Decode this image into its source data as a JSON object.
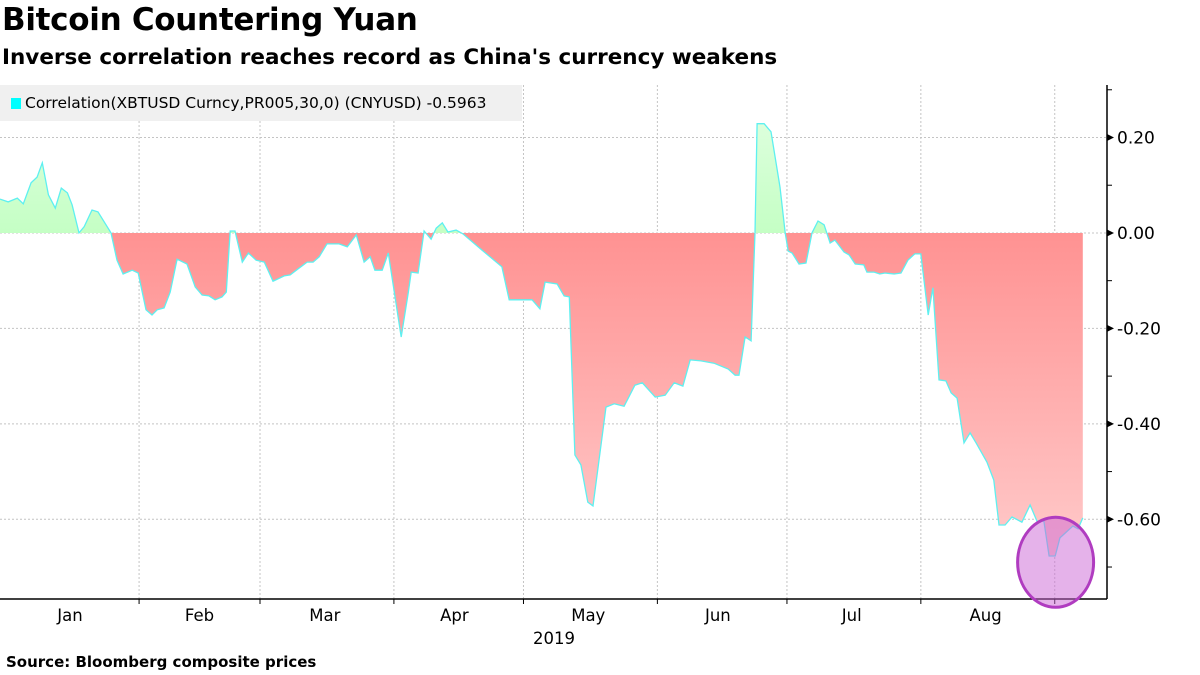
{
  "header": {
    "title": "Bitcoin Countering Yuan",
    "subtitle": "Inverse correlation reaches record as China's currency weakens"
  },
  "footer": {
    "source": "Source: Bloomberg composite prices"
  },
  "chart_data": {
    "type": "area",
    "title": "Bitcoin Countering Yuan",
    "subtitle": "Inverse correlation reaches record as China's currency weakens",
    "xlabel": "2019",
    "ylabel": "",
    "x_unit": "day of year 2019 (0 = Jan 1)",
    "xlim": [
      -1.2,
      255.1
    ],
    "ylim": [
      -0.767,
      0.31
    ],
    "grid": true,
    "legend_position": "top-left",
    "legend": {
      "label": "Correlation(XBTUSD Curncy,PR005,30,0) (CNYUSD) -0.5963",
      "color": "#00ffff"
    },
    "colors": {
      "line": "#5ef0f0",
      "positive_fill": "#7fff7f",
      "negative_fill": "#ff7f7f",
      "highlight": "#b03cc0"
    },
    "x_ticks": [
      {
        "label": "Jan",
        "day": 15
      },
      {
        "label": "Feb",
        "day": 45
      },
      {
        "label": "Mar",
        "day": 74
      },
      {
        "label": "Apr",
        "day": 104
      },
      {
        "label": "May",
        "day": 135
      },
      {
        "label": "Jun",
        "day": 165
      },
      {
        "label": "Jul",
        "day": 196
      },
      {
        "label": "Aug",
        "day": 227
      }
    ],
    "x_gridlines": [
      31,
      59,
      90,
      120,
      151,
      181,
      212,
      243
    ],
    "y_ticks": [
      {
        "value": 0.2,
        "label": "0.20"
      },
      {
        "value": 0.0,
        "label": "0.00"
      },
      {
        "value": -0.2,
        "label": "-0.20"
      },
      {
        "value": -0.4,
        "label": "-0.40"
      },
      {
        "value": -0.6,
        "label": "-0.60"
      }
    ],
    "y_minor_ticks": [
      0.3,
      0.1,
      -0.1,
      -0.3,
      -0.5,
      -0.7
    ],
    "highlight": {
      "description_hidden": true,
      "center_day": 243.2,
      "center_value": -0.69
    },
    "series": [
      {
        "name": "Correlation(XBTUSD Curncy,PR005,30,0) (CNYUSD)",
        "last_value": -0.5963,
        "points": [
          [
            -1.2,
            0.071
          ],
          [
            0.7,
            0.065
          ],
          [
            2.8,
            0.073
          ],
          [
            4.2,
            0.061
          ],
          [
            6.0,
            0.105
          ],
          [
            7.4,
            0.117
          ],
          [
            8.6,
            0.147
          ],
          [
            10.0,
            0.08
          ],
          [
            11.6,
            0.052
          ],
          [
            13.0,
            0.094
          ],
          [
            14.4,
            0.084
          ],
          [
            15.5,
            0.059
          ],
          [
            17.1,
            0.0
          ],
          [
            18.3,
            0.013
          ],
          [
            20.1,
            0.048
          ],
          [
            21.5,
            0.044
          ],
          [
            24.5,
            0.0
          ],
          [
            25.9,
            -0.057
          ],
          [
            27.3,
            -0.086
          ],
          [
            29.4,
            -0.078
          ],
          [
            30.8,
            -0.084
          ],
          [
            32.6,
            -0.161
          ],
          [
            34.0,
            -0.172
          ],
          [
            35.2,
            -0.161
          ],
          [
            36.8,
            -0.157
          ],
          [
            38.2,
            -0.124
          ],
          [
            39.8,
            -0.055
          ],
          [
            42.1,
            -0.065
          ],
          [
            44.0,
            -0.113
          ],
          [
            45.6,
            -0.13
          ],
          [
            47.2,
            -0.132
          ],
          [
            48.6,
            -0.14
          ],
          [
            50.2,
            -0.134
          ],
          [
            51.2,
            -0.124
          ],
          [
            52.1,
            0.004
          ],
          [
            53.2,
            0.004
          ],
          [
            54.9,
            -0.061
          ],
          [
            56.3,
            -0.042
          ],
          [
            58.1,
            -0.057
          ],
          [
            60.0,
            -0.061
          ],
          [
            62.0,
            -0.101
          ],
          [
            64.6,
            -0.09
          ],
          [
            66.0,
            -0.088
          ],
          [
            67.4,
            -0.078
          ],
          [
            69.9,
            -0.061
          ],
          [
            71.3,
            -0.061
          ],
          [
            72.7,
            -0.05
          ],
          [
            74.5,
            -0.023
          ],
          [
            77.3,
            -0.023
          ],
          [
            79.2,
            -0.029
          ],
          [
            81.3,
            -0.004
          ],
          [
            83.1,
            -0.061
          ],
          [
            84.5,
            -0.05
          ],
          [
            85.6,
            -0.078
          ],
          [
            87.3,
            -0.078
          ],
          [
            88.7,
            -0.042
          ],
          [
            91.7,
            -0.218
          ],
          [
            93.3,
            -0.126
          ],
          [
            94.0,
            -0.082
          ],
          [
            95.6,
            -0.084
          ],
          [
            97.0,
            0.004
          ],
          [
            98.6,
            -0.013
          ],
          [
            99.8,
            0.01
          ],
          [
            101.2,
            0.021
          ],
          [
            102.5,
            0.002
          ],
          [
            104.4,
            0.006
          ],
          [
            106.0,
            -0.002
          ],
          [
            110.4,
            -0.036
          ],
          [
            115.0,
            -0.071
          ],
          [
            116.7,
            -0.14
          ],
          [
            122.0,
            -0.14
          ],
          [
            123.8,
            -0.159
          ],
          [
            125.0,
            -0.103
          ],
          [
            127.8,
            -0.107
          ],
          [
            129.4,
            -0.132
          ],
          [
            130.6,
            -0.134
          ],
          [
            131.9,
            -0.465
          ],
          [
            133.3,
            -0.486
          ],
          [
            134.9,
            -0.564
          ],
          [
            136.1,
            -0.572
          ],
          [
            139.1,
            -0.365
          ],
          [
            141.0,
            -0.358
          ],
          [
            143.3,
            -0.363
          ],
          [
            145.8,
            -0.319
          ],
          [
            147.5,
            -0.314
          ],
          [
            150.5,
            -0.344
          ],
          [
            152.8,
            -0.34
          ],
          [
            154.9,
            -0.314
          ],
          [
            156.9,
            -0.321
          ],
          [
            158.6,
            -0.266
          ],
          [
            161.1,
            -0.268
          ],
          [
            164.1,
            -0.273
          ],
          [
            167.4,
            -0.285
          ],
          [
            169.0,
            -0.298
          ],
          [
            169.9,
            -0.298
          ],
          [
            171.3,
            -0.218
          ],
          [
            172.7,
            -0.226
          ],
          [
            173.6,
            0.0
          ],
          [
            174.1,
            0.229
          ],
          [
            175.7,
            0.229
          ],
          [
            177.3,
            0.212
          ],
          [
            179.4,
            0.096
          ],
          [
            180.6,
            0.0
          ],
          [
            181.3,
            -0.038
          ],
          [
            182.2,
            -0.042
          ],
          [
            183.8,
            -0.065
          ],
          [
            185.4,
            -0.063
          ],
          [
            186.8,
            0.0
          ],
          [
            188.2,
            0.025
          ],
          [
            189.6,
            0.017
          ],
          [
            191.0,
            -0.021
          ],
          [
            192.1,
            -0.015
          ],
          [
            194.2,
            -0.04
          ],
          [
            195.4,
            -0.046
          ],
          [
            196.8,
            -0.065
          ],
          [
            198.8,
            -0.067
          ],
          [
            199.5,
            -0.082
          ],
          [
            201.2,
            -0.082
          ],
          [
            202.5,
            -0.086
          ],
          [
            203.7,
            -0.084
          ],
          [
            205.8,
            -0.086
          ],
          [
            207.4,
            -0.084
          ],
          [
            209.0,
            -0.057
          ],
          [
            210.6,
            -0.044
          ],
          [
            212.0,
            -0.044
          ],
          [
            213.7,
            -0.172
          ],
          [
            214.8,
            -0.115
          ],
          [
            216.2,
            -0.308
          ],
          [
            217.8,
            -0.31
          ],
          [
            219.0,
            -0.335
          ],
          [
            220.4,
            -0.346
          ],
          [
            222.0,
            -0.44
          ],
          [
            223.4,
            -0.419
          ],
          [
            224.8,
            -0.44
          ],
          [
            227.3,
            -0.48
          ],
          [
            228.9,
            -0.518
          ],
          [
            230.1,
            -0.612
          ],
          [
            231.5,
            -0.612
          ],
          [
            233.1,
            -0.595
          ],
          [
            235.4,
            -0.606
          ],
          [
            237.3,
            -0.57
          ],
          [
            238.9,
            -0.604
          ],
          [
            240.5,
            -0.604
          ],
          [
            241.7,
            -0.677
          ],
          [
            243.1,
            -0.677
          ],
          [
            244.2,
            -0.639
          ],
          [
            247.2,
            -0.614
          ],
          [
            248.4,
            -0.62
          ],
          [
            249.5,
            -0.597
          ]
        ]
      }
    ]
  }
}
